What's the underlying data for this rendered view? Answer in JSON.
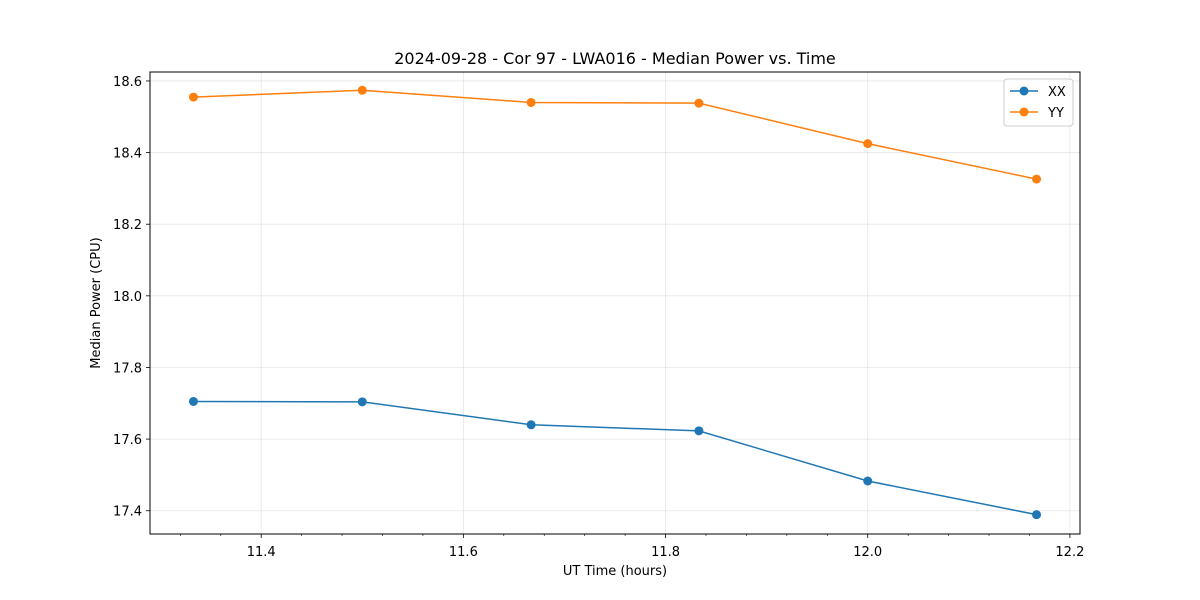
{
  "chart_data": {
    "type": "line",
    "title": "2024-09-28 - Cor 97 - LWA016 - Median Power vs. Time",
    "xlabel": "UT Time (hours)",
    "ylabel": "Median Power (CPU)",
    "xlim": [
      11.29,
      12.21
    ],
    "ylim": [
      17.335,
      18.625
    ],
    "xticks": [
      11.4,
      11.6,
      11.8,
      12.0,
      12.2
    ],
    "xtick_labels": [
      "11.4",
      "11.6",
      "11.8",
      "12.0",
      "12.2"
    ],
    "yticks": [
      17.4,
      17.6,
      17.8,
      18.0,
      18.2,
      18.4,
      18.6
    ],
    "ytick_labels": [
      "17.4",
      "17.6",
      "17.8",
      "18.0",
      "18.2",
      "18.4",
      "18.6"
    ],
    "grid": true,
    "legend_position": "top-right",
    "x": [
      11.333,
      11.5,
      11.667,
      11.833,
      12.0,
      12.167
    ],
    "series": [
      {
        "name": "XX",
        "color": "#1f77b4",
        "values": [
          17.705,
          17.704,
          17.64,
          17.623,
          17.483,
          17.389
        ]
      },
      {
        "name": "YY",
        "color": "#ff7f0e",
        "values": [
          18.555,
          18.574,
          18.54,
          18.538,
          18.425,
          18.326
        ]
      }
    ]
  }
}
